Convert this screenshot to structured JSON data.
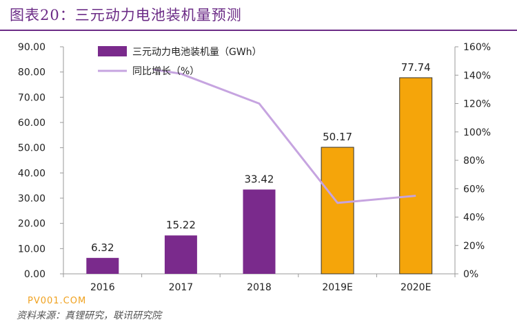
{
  "header": {
    "title": "图表20：三元动力电池装机量预测"
  },
  "footer": {
    "source": "资料来源：真锂研究，联讯研究院",
    "watermark": "PV001.COM"
  },
  "colors": {
    "title": "#6b2b86",
    "bar_actual": "#7a2a8c",
    "bar_forecast": "#f5a50a",
    "line": "#c6a4e0"
  },
  "chart_data": {
    "type": "bar",
    "categories": [
      "2016",
      "2017",
      "2018",
      "2019E",
      "2020E"
    ],
    "bar_colors": [
      "#7a2a8c",
      "#7a2a8c",
      "#7a2a8c",
      "#f5a50a",
      "#f5a50a"
    ],
    "series": [
      {
        "name": "三元动力电池装机量（GWh）",
        "type": "bar",
        "axis": "left",
        "values": [
          6.32,
          15.22,
          33.42,
          50.17,
          77.74
        ],
        "labels": [
          "6.32",
          "15.22",
          "33.42",
          "50.17",
          "77.74"
        ]
      },
      {
        "name": "同比增长（%）",
        "type": "line",
        "axis": "right",
        "values": [
          null,
          141,
          120,
          50,
          55
        ]
      }
    ],
    "left_axis": {
      "min": 0,
      "max": 90,
      "ticks": [
        "0.00",
        "10.00",
        "20.00",
        "30.00",
        "40.00",
        "50.00",
        "60.00",
        "70.00",
        "80.00",
        "90.00"
      ]
    },
    "right_axis": {
      "min": 0,
      "max": 160,
      "ticks": [
        "0%",
        "20%",
        "40%",
        "60%",
        "80%",
        "100%",
        "120%",
        "140%",
        "160%"
      ]
    },
    "legend": "top-left"
  }
}
